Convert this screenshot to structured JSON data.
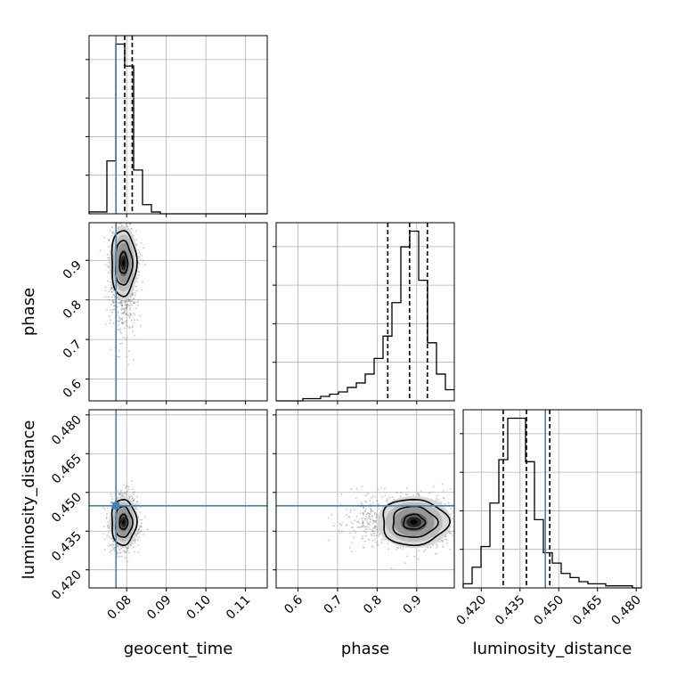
{
  "chart_data": {
    "type": "corner",
    "parameters": [
      "geocent_time",
      "phase",
      "luminosity_distance"
    ],
    "axis_labels": {
      "geocent_time": "geocent_time",
      "phase": "phase",
      "luminosity_distance": "luminosity_distance"
    },
    "ranges": {
      "geocent_time": [
        0.0705,
        0.1155
      ],
      "phase": [
        0.545,
        0.995
      ],
      "luminosity_distance": [
        0.413,
        0.482
      ]
    },
    "ticks": {
      "geocent_time": [
        0.08,
        0.09,
        0.1,
        0.11
      ],
      "phase": [
        0.6,
        0.7,
        0.8,
        0.9
      ],
      "luminosity_distance": [
        0.42,
        0.435,
        0.45,
        0.465,
        0.48
      ]
    },
    "tick_labels": {
      "geocent_time": [
        "0.08",
        "0.09",
        "0.10",
        "0.11"
      ],
      "phase": [
        "0.6",
        "0.7",
        "0.8",
        "0.9"
      ],
      "luminosity_distance": [
        "0.420",
        "0.435",
        "0.450",
        "0.465",
        "0.480"
      ]
    },
    "truths": {
      "geocent_time": 0.0773,
      "phase": null,
      "luminosity_distance": 0.4448
    },
    "quantiles": {
      "geocent_time": [
        0.0773,
        0.0795,
        0.0814
      ],
      "phase": [
        0.827,
        0.882,
        0.927
      ],
      "luminosity_distance": [
        0.4285,
        0.4375,
        0.4465
      ]
    },
    "histograms": {
      "geocent_time": {
        "edges": [
          0.0705,
          0.07275,
          0.075,
          0.07725,
          0.0795,
          0.08175,
          0.084,
          0.08625,
          0.0885,
          0.09075,
          0.093,
          0.09525,
          0.0975,
          0.09975,
          0.102,
          0.10425,
          0.1065,
          0.10875,
          0.111,
          0.11325,
          0.1155
        ],
        "counts": [
          0.01,
          0.01,
          0.29,
          0.93,
          0.81,
          0.24,
          0.05,
          0.01,
          0,
          0,
          0,
          0,
          0,
          0,
          0,
          0,
          0,
          0,
          0,
          0
        ]
      },
      "phase": {
        "edges": [
          0.545,
          0.5675,
          0.59,
          0.6125,
          0.635,
          0.6575,
          0.68,
          0.7025,
          0.725,
          0.7475,
          0.77,
          0.7925,
          0.815,
          0.8375,
          0.86,
          0.8825,
          0.905,
          0.9275,
          0.95,
          0.9725,
          0.995
        ],
        "counts": [
          0,
          0,
          0,
          0.01,
          0.01,
          0.02,
          0.03,
          0.04,
          0.06,
          0.08,
          0.12,
          0.19,
          0.29,
          0.44,
          0.69,
          0.76,
          0.54,
          0.26,
          0.12,
          0.05
        ]
      },
      "luminosity_distance": {
        "edges": [
          0.413,
          0.41645,
          0.4199,
          0.42335,
          0.4268,
          0.43025,
          0.4337,
          0.43715,
          0.4406,
          0.44405,
          0.4475,
          0.45095,
          0.4544,
          0.45785,
          0.4613,
          0.46475,
          0.4682,
          0.47165,
          0.4751,
          0.47855,
          0.482
        ],
        "counts": [
          0.02,
          0.1,
          0.2,
          0.41,
          0.62,
          0.82,
          0.82,
          0.61,
          0.33,
          0.17,
          0.12,
          0.07,
          0.05,
          0.03,
          0.02,
          0.02,
          0.01,
          0.01,
          0.01,
          0
        ]
      }
    },
    "posterior_2d": [
      {
        "x": "geocent_time",
        "y": "phase",
        "peak": [
          0.0792,
          0.893
        ],
        "std": [
          0.0017,
          0.045
        ]
      },
      {
        "x": "geocent_time",
        "y": "luminosity_distance",
        "peak": [
          0.0792,
          0.4385
        ],
        "std": [
          0.0017,
          0.0048
        ]
      },
      {
        "x": "phase",
        "y": "luminosity_distance",
        "peak": [
          0.893,
          0.4385
        ],
        "std": [
          0.045,
          0.0048
        ]
      }
    ],
    "colors": {
      "truth": "#4682b4",
      "hist": "#000000",
      "points": "#7f7f7f",
      "grid": "#b0b0b0"
    },
    "grid": true
  }
}
